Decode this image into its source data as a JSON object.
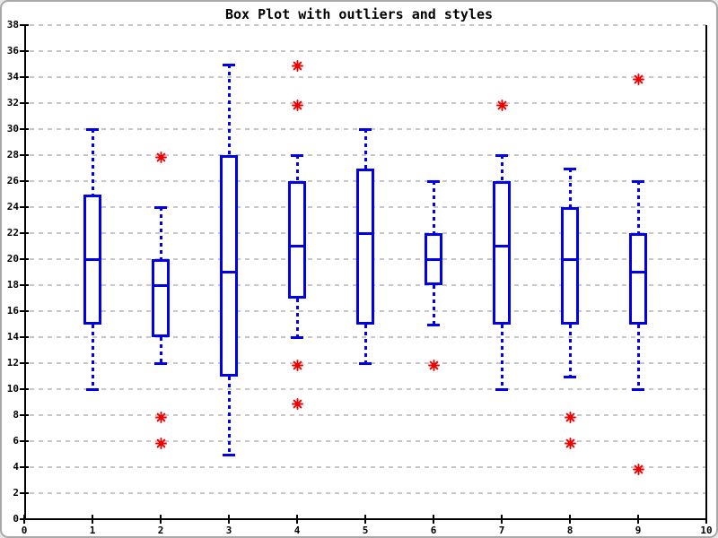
{
  "chart_data": {
    "type": "boxplot",
    "title": "Box Plot with outliers and styles",
    "xlabel": "",
    "ylabel": "",
    "xlim": [
      0,
      10
    ],
    "ylim": [
      0,
      38
    ],
    "x_ticks": [
      0,
      1,
      2,
      3,
      4,
      5,
      6,
      7,
      8,
      9,
      10
    ],
    "y_ticks": [
      0,
      2,
      4,
      6,
      8,
      10,
      12,
      14,
      16,
      18,
      20,
      22,
      24,
      26,
      28,
      30,
      32,
      34,
      36,
      38
    ],
    "grid": "horizontal-dashed",
    "legend": "none",
    "colors": {
      "box": "#0000ee",
      "outlier": "#ee0000",
      "grid": "#c6c6c6",
      "axis": "#000000",
      "title": "#000000",
      "background": "#ffffff",
      "frame_border": "#a9a9a9"
    },
    "series": [
      {
        "x": 1,
        "whisker_low": 10,
        "q1": 15,
        "median": 20,
        "q3": 25,
        "whisker_high": 30,
        "outliers": []
      },
      {
        "x": 2,
        "whisker_low": 12,
        "q1": 14,
        "median": 18,
        "q3": 20,
        "whisker_high": 24,
        "outliers": [
          28,
          8,
          6
        ]
      },
      {
        "x": 3,
        "whisker_low": 5,
        "q1": 11,
        "median": 19,
        "q3": 28,
        "whisker_high": 35,
        "outliers": []
      },
      {
        "x": 4,
        "whisker_low": 14,
        "q1": 17,
        "median": 21,
        "q3": 26,
        "whisker_high": 28,
        "outliers": [
          35,
          32,
          12,
          9
        ]
      },
      {
        "x": 5,
        "whisker_low": 12,
        "q1": 15,
        "median": 22,
        "q3": 27,
        "whisker_high": 30,
        "outliers": []
      },
      {
        "x": 6,
        "whisker_low": 15,
        "q1": 18,
        "median": 20,
        "q3": 22,
        "whisker_high": 26,
        "outliers": [
          12
        ]
      },
      {
        "x": 7,
        "whisker_low": 10,
        "q1": 15,
        "median": 21,
        "q3": 26,
        "whisker_high": 28,
        "outliers": [
          32
        ]
      },
      {
        "x": 8,
        "whisker_low": 11,
        "q1": 15,
        "median": 20,
        "q3": 24,
        "whisker_high": 27,
        "outliers": [
          8,
          6
        ]
      },
      {
        "x": 9,
        "whisker_low": 10,
        "q1": 15,
        "median": 19,
        "q3": 22,
        "whisker_high": 26,
        "outliers": [
          34,
          4
        ]
      }
    ]
  }
}
